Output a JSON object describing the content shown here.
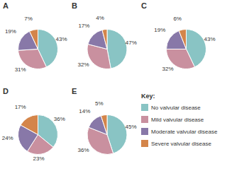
{
  "chart_data": [
    {
      "type": "pie",
      "title": "A",
      "categories": [
        "No valvular disease",
        "Mild valvular disease",
        "Moderate valvular disease",
        "Severe valvular disease"
      ],
      "values": [
        43,
        31,
        19,
        7
      ],
      "value_labels": [
        "43%",
        "31%",
        "19%",
        "7%"
      ],
      "colors": [
        "#89c4c4",
        "#c9909f",
        "#8878a8",
        "#d4854a"
      ],
      "data_labels": true,
      "legend": "lower right",
      "annotations": [
        "Key:"
      ]
    },
    {
      "type": "pie",
      "title": "B",
      "categories": [
        "No valvular disease",
        "Mild valvular disease",
        "Moderate valvular disease",
        "Severe valvular disease"
      ],
      "values": [
        47,
        32,
        17,
        4
      ],
      "value_labels": [
        "47%",
        "32%",
        "17%",
        "4%"
      ],
      "colors": [
        "#89c4c4",
        "#c9909f",
        "#8878a8",
        "#d4854a"
      ],
      "data_labels": true
    },
    {
      "type": "pie",
      "title": "C",
      "categories": [
        "No valvular disease",
        "Mild valvular disease",
        "Moderate valvular disease",
        "Severe valvular disease"
      ],
      "values": [
        43,
        32,
        19,
        6
      ],
      "value_labels": [
        "43%",
        "32%",
        "19%",
        "6%"
      ],
      "colors": [
        "#89c4c4",
        "#c9909f",
        "#8878a8",
        "#d4854a"
      ],
      "data_labels": true
    },
    {
      "type": "pie",
      "title": "D",
      "categories": [
        "No valvular disease",
        "Mild valvular disease",
        "Moderate valvular disease",
        "Severe valvular disease"
      ],
      "values": [
        36,
        23,
        24,
        17
      ],
      "value_labels": [
        "36%",
        "23%",
        "24%",
        "17%"
      ],
      "colors": [
        "#89c4c4",
        "#c9909f",
        "#8878a8",
        "#d4854a"
      ],
      "data_labels": true
    },
    {
      "type": "pie",
      "title": "E",
      "categories": [
        "No valvular disease",
        "Mild valvular disease",
        "Moderate valvular disease",
        "Severe valvular disease"
      ],
      "values": [
        45,
        36,
        14,
        5
      ],
      "value_labels": [
        "45%",
        "36%",
        "14%",
        "5%"
      ],
      "colors": [
        "#89c4c4",
        "#c9909f",
        "#8878a8",
        "#d4854a"
      ],
      "data_labels": true
    }
  ]
}
